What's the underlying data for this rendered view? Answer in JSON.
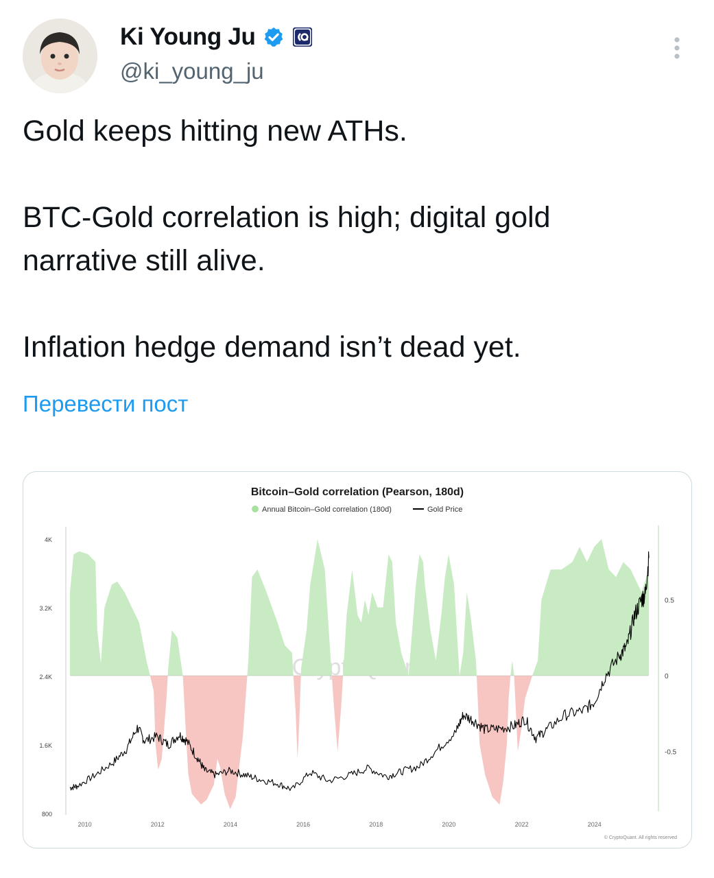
{
  "author": {
    "name": "Ki Young Ju",
    "handle": "@ki_young_ju",
    "verified_badge": "verified-badge-icon",
    "affiliate_badge": "cryptoquant-badge-icon"
  },
  "menu": {
    "more_icon": "more-vertical-icon"
  },
  "tweet": {
    "paragraphs": [
      "Gold keeps hitting new ATHs.",
      "BTC-Gold correlation is high; digital gold",
      "narrative still alive.",
      "Inflation hedge demand isn’t dead yet."
    ],
    "translate_label": "Перевести пост"
  },
  "colors": {
    "positive_fill": "#c8ebc3",
    "negative_fill": "#f7c6c3",
    "gold_line": "#000000",
    "link": "#1d9bf0"
  },
  "chart_data": {
    "type": "area",
    "title": "Bitcoin–Gold correlation (Pearson, 180d)",
    "legend": [
      "Annual Bitcoin–Gold correlation (180d)",
      "Gold Price"
    ],
    "legend_placement": "top-center",
    "watermark": "CryptoQuant",
    "copyright": "© CryptoQuant. All rights reserved",
    "x_ticks": [
      "2010",
      "2012",
      "2014",
      "2016",
      "2018",
      "2020",
      "2022",
      "2024"
    ],
    "y_left_ticks": [
      "4K",
      "3.2K",
      "2.4K",
      "1.6K",
      "800"
    ],
    "y_right_ticks": [
      "0.5",
      "0",
      "-0.5"
    ],
    "y_left_range": [
      800,
      4000
    ],
    "y_right_range": [
      -0.9,
      0.9
    ],
    "series": [
      {
        "name": "Annual Bitcoin–Gold correlation (180d)",
        "x": [
          2009.8,
          2009.9,
          2010.05,
          2010.3,
          2010.5,
          2010.55,
          2010.65,
          2010.75,
          2010.95,
          2011.1,
          2011.3,
          2011.5,
          2011.7,
          2011.9,
          2012.1,
          2012.15,
          2012.22,
          2012.32,
          2012.45,
          2012.5,
          2012.6,
          2012.75,
          2012.9,
          2013.0,
          2013.05,
          2013.15,
          2013.4,
          2013.55,
          2013.75,
          2013.85,
          2013.92,
          2014.05,
          2014.2,
          2014.35,
          2014.55,
          2014.7,
          2014.8,
          2014.95,
          2015.2,
          2015.5,
          2015.7,
          2015.9,
          2016.0,
          2016.05,
          2016.1,
          2016.15,
          2016.3,
          2016.4,
          2016.6,
          2016.8,
          2016.95,
          2017.05,
          2017.15,
          2017.25,
          2017.4,
          2017.55,
          2017.7,
          2017.8,
          2017.9,
          2018.0,
          2018.1,
          2018.25,
          2018.4,
          2018.55,
          2018.65,
          2018.75,
          2018.9,
          2019.1,
          2019.3,
          2019.4,
          2019.5,
          2019.55,
          2019.7,
          2019.85,
          2020.0,
          2020.1,
          2020.2,
          2020.35,
          2020.45,
          2020.5,
          2020.6,
          2020.7,
          2020.8,
          2020.95,
          2021.0,
          2021.05,
          2021.2,
          2021.4,
          2021.6,
          2021.7,
          2021.8,
          2021.85,
          2021.9,
          2021.95,
          2022.0,
          2022.05,
          2022.1,
          2022.2,
          2022.3,
          2022.5,
          2022.65,
          2022.75,
          2023.0,
          2023.3,
          2023.6,
          2023.8,
          2024.0,
          2024.2,
          2024.4,
          2024.6,
          2024.8,
          2025.0,
          2025.2,
          2025.5,
          2025.7
        ],
        "values": [
          0.55,
          0.8,
          0.82,
          0.8,
          0.75,
          0.3,
          0.08,
          0.45,
          0.6,
          0.62,
          0.55,
          0.45,
          0.35,
          0.1,
          -0.1,
          -0.45,
          -0.62,
          -0.55,
          -0.15,
          0.05,
          0.3,
          0.25,
          0.0,
          -0.45,
          -0.65,
          -0.78,
          -0.85,
          -0.82,
          -0.72,
          -0.55,
          -0.6,
          -0.78,
          -0.88,
          -0.8,
          -0.4,
          0.1,
          0.65,
          0.7,
          0.55,
          0.35,
          0.2,
          0.15,
          -0.25,
          -0.55,
          -0.3,
          0.05,
          0.3,
          0.6,
          0.9,
          0.7,
          0.15,
          -0.2,
          -0.5,
          -0.2,
          0.4,
          0.7,
          0.4,
          0.35,
          0.5,
          0.4,
          0.55,
          0.45,
          0.45,
          0.8,
          0.75,
          0.35,
          0.15,
          0.0,
          0.6,
          0.8,
          0.75,
          0.6,
          0.3,
          0.1,
          0.4,
          0.65,
          0.8,
          0.6,
          0.2,
          0.0,
          0.15,
          0.55,
          0.4,
          0.1,
          -0.15,
          -0.45,
          -0.65,
          -0.8,
          -0.85,
          -0.7,
          -0.45,
          -0.15,
          0.0,
          0.1,
          0.0,
          -0.25,
          -0.5,
          -0.35,
          -0.15,
          0.0,
          0.1,
          0.5,
          0.7,
          0.7,
          0.75,
          0.85,
          0.75,
          0.85,
          0.9,
          0.7,
          0.65,
          0.75,
          0.7,
          0.55,
          0.7
        ]
      },
      {
        "name": "Gold Price",
        "x": [
          2009.8,
          2010.0,
          2010.5,
          2011.0,
          2011.35,
          2011.65,
          2011.85,
          2012.2,
          2012.5,
          2012.8,
          2013.0,
          2013.3,
          2013.5,
          2013.8,
          2014.2,
          2014.6,
          2015.0,
          2015.5,
          2015.9,
          2016.4,
          2016.9,
          2017.5,
          2018.0,
          2018.5,
          2018.9,
          2019.4,
          2019.9,
          2020.4,
          2020.6,
          2020.9,
          2021.2,
          2021.6,
          2022.0,
          2022.3,
          2022.6,
          2022.9,
          2023.4,
          2023.9,
          2024.2,
          2024.5,
          2024.9,
          2025.1,
          2025.3,
          2025.5,
          2025.6,
          2025.7
        ],
        "values": [
          1100,
          1120,
          1250,
          1400,
          1550,
          1800,
          1650,
          1700,
          1600,
          1720,
          1650,
          1450,
          1300,
          1250,
          1300,
          1250,
          1200,
          1150,
          1080,
          1280,
          1180,
          1250,
          1330,
          1230,
          1290,
          1350,
          1550,
          1750,
          1950,
          1880,
          1780,
          1790,
          1820,
          1900,
          1680,
          1780,
          1950,
          2000,
          2100,
          2400,
          2650,
          2750,
          3100,
          3300,
          3350,
          3780
        ]
      }
    ]
  }
}
